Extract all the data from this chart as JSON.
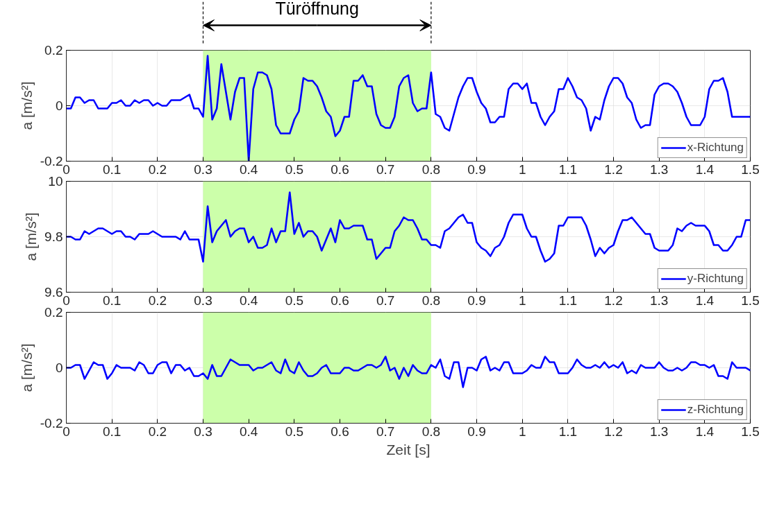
{
  "chart_data": [
    {
      "type": "line",
      "ylabel": "a [m/s²]",
      "xlim": [
        0,
        1.5
      ],
      "xticks": [
        0,
        0.1,
        0.2,
        0.3,
        0.4,
        0.5,
        0.6,
        0.7,
        0.8,
        0.9,
        1,
        1.1,
        1.2,
        1.3,
        1.4,
        1.5
      ],
      "ylim": [
        -0.2,
        0.2
      ],
      "yticks": [
        -0.2,
        0,
        0.2
      ],
      "grid": true,
      "legend": "bottom right",
      "line_style": "solid",
      "bands": [
        {
          "axis": "x",
          "from": 0.3,
          "to": 0.8,
          "label": "Türöffnung",
          "color": "#ccffaa"
        }
      ],
      "x": [
        0,
        0.01,
        0.02,
        0.03,
        0.04,
        0.05,
        0.06,
        0.07,
        0.08,
        0.09,
        0.1,
        0.11,
        0.12,
        0.13,
        0.14,
        0.15,
        0.16,
        0.17,
        0.18,
        0.19,
        0.2,
        0.21,
        0.22,
        0.23,
        0.24,
        0.25,
        0.26,
        0.27,
        0.28,
        0.29,
        0.3,
        0.31,
        0.32,
        0.33,
        0.34,
        0.35,
        0.36,
        0.37,
        0.38,
        0.39,
        0.4,
        0.41,
        0.42,
        0.43,
        0.44,
        0.45,
        0.46,
        0.47,
        0.48,
        0.49,
        0.5,
        0.51,
        0.52,
        0.53,
        0.54,
        0.55,
        0.56,
        0.57,
        0.58,
        0.59,
        0.6,
        0.61,
        0.62,
        0.63,
        0.64,
        0.65,
        0.66,
        0.67,
        0.68,
        0.69,
        0.7,
        0.71,
        0.72,
        0.73,
        0.74,
        0.75,
        0.76,
        0.77,
        0.78,
        0.79,
        0.8,
        0.81,
        0.82,
        0.83,
        0.84,
        0.85,
        0.86,
        0.87,
        0.88,
        0.89,
        0.9,
        0.91,
        0.92,
        0.93,
        0.94,
        0.95,
        0.96,
        0.97,
        0.98,
        0.99,
        1,
        1.01,
        1.02,
        1.03,
        1.04,
        1.05,
        1.06,
        1.07,
        1.08,
        1.09,
        1.1,
        1.11,
        1.12,
        1.13,
        1.14,
        1.15,
        1.16,
        1.17,
        1.18,
        1.19,
        1.2,
        1.21,
        1.22,
        1.23,
        1.24,
        1.25,
        1.26,
        1.27,
        1.28,
        1.29,
        1.3,
        1.31,
        1.32,
        1.33,
        1.34,
        1.35,
        1.36,
        1.37,
        1.38,
        1.39,
        1.4,
        1.41,
        1.42,
        1.43,
        1.44,
        1.45,
        1.46,
        1.47,
        1.48,
        1.49,
        1.5
      ],
      "series": [
        {
          "name": "x-Richtung",
          "color": "#0000ff",
          "values": [
            -0.01,
            -0.01,
            0.03,
            0.03,
            0.01,
            0.02,
            0.02,
            -0.01,
            -0.01,
            -0.01,
            0.01,
            0.01,
            0.02,
            0,
            0,
            0.02,
            0.01,
            0.02,
            0.02,
            0,
            0.01,
            0,
            0,
            0.02,
            0.02,
            0.02,
            0.03,
            0.04,
            -0.01,
            -0.01,
            -0.04,
            0.18,
            -0.05,
            -0.01,
            0.15,
            0.05,
            -0.05,
            0.05,
            0.1,
            0.1,
            -0.2,
            0.06,
            0.12,
            0.12,
            0.11,
            0.06,
            -0.07,
            -0.1,
            -0.1,
            -0.1,
            -0.05,
            -0.02,
            0.1,
            0.09,
            0.09,
            0.07,
            0.03,
            -0.02,
            -0.04,
            -0.11,
            -0.09,
            -0.04,
            -0.04,
            0.09,
            0.09,
            0.11,
            0.07,
            0.07,
            -0.03,
            -0.07,
            -0.08,
            -0.08,
            -0.04,
            0.07,
            0.1,
            0.11,
            0.01,
            -0.02,
            -0.01,
            -0.01,
            0.12,
            -0.03,
            -0.04,
            -0.08,
            -0.09,
            -0.03,
            0.03,
            0.07,
            0.1,
            0.1,
            0.05,
            0.01,
            -0.01,
            -0.06,
            -0.06,
            -0.04,
            -0.04,
            0.06,
            0.08,
            0.08,
            0.06,
            0.08,
            0.01,
            0.01,
            -0.04,
            -0.07,
            -0.04,
            -0.02,
            0.06,
            0.06,
            0.1,
            0.07,
            0.03,
            0.02,
            -0.01,
            -0.09,
            -0.04,
            -0.05,
            0.02,
            0.07,
            0.1,
            0.1,
            0.08,
            0.03,
            0.01,
            -0.05,
            -0.08,
            -0.07,
            -0.07,
            0.04,
            0.07,
            0.08,
            0.08,
            0.07,
            0.05,
            0.01,
            -0.04,
            -0.07,
            -0.07,
            -0.07,
            -0.04,
            0.06,
            0.09,
            0.09,
            0.1,
            0.05,
            -0.04,
            -0.04,
            -0.04,
            -0.04,
            -0.04
          ]
        }
      ]
    },
    {
      "type": "line",
      "ylabel": "a [m/s²]",
      "xlim": [
        0,
        1.5
      ],
      "xticks": [
        0,
        0.1,
        0.2,
        0.3,
        0.4,
        0.5,
        0.6,
        0.7,
        0.8,
        0.9,
        1,
        1.1,
        1.2,
        1.3,
        1.4,
        1.5
      ],
      "ylim": [
        9.6,
        10
      ],
      "yticks": [
        9.6,
        9.8,
        10
      ],
      "grid": true,
      "legend": "bottom right",
      "line_style": "solid",
      "bands": [
        {
          "axis": "x",
          "from": 0.3,
          "to": 0.8,
          "color": "#ccffaa"
        }
      ],
      "x": [
        0,
        0.01,
        0.02,
        0.03,
        0.04,
        0.05,
        0.06,
        0.07,
        0.08,
        0.09,
        0.1,
        0.11,
        0.12,
        0.13,
        0.14,
        0.15,
        0.16,
        0.17,
        0.18,
        0.19,
        0.2,
        0.21,
        0.22,
        0.23,
        0.24,
        0.25,
        0.26,
        0.27,
        0.28,
        0.29,
        0.3,
        0.31,
        0.32,
        0.33,
        0.34,
        0.35,
        0.36,
        0.37,
        0.38,
        0.39,
        0.4,
        0.41,
        0.42,
        0.43,
        0.44,
        0.45,
        0.46,
        0.47,
        0.48,
        0.49,
        0.5,
        0.51,
        0.52,
        0.53,
        0.54,
        0.55,
        0.56,
        0.57,
        0.58,
        0.59,
        0.6,
        0.61,
        0.62,
        0.63,
        0.64,
        0.65,
        0.66,
        0.67,
        0.68,
        0.69,
        0.7,
        0.71,
        0.72,
        0.73,
        0.74,
        0.75,
        0.76,
        0.77,
        0.78,
        0.79,
        0.8,
        0.81,
        0.82,
        0.83,
        0.84,
        0.85,
        0.86,
        0.87,
        0.88,
        0.89,
        0.9,
        0.91,
        0.92,
        0.93,
        0.94,
        0.95,
        0.96,
        0.97,
        0.98,
        0.99,
        1,
        1.01,
        1.02,
        1.03,
        1.04,
        1.05,
        1.06,
        1.07,
        1.08,
        1.09,
        1.1,
        1.11,
        1.12,
        1.13,
        1.14,
        1.15,
        1.16,
        1.17,
        1.18,
        1.19,
        1.2,
        1.21,
        1.22,
        1.23,
        1.24,
        1.25,
        1.26,
        1.27,
        1.28,
        1.29,
        1.3,
        1.31,
        1.32,
        1.33,
        1.34,
        1.35,
        1.36,
        1.37,
        1.38,
        1.39,
        1.4,
        1.41,
        1.42,
        1.43,
        1.44,
        1.45,
        1.46,
        1.47,
        1.48,
        1.49,
        1.5
      ],
      "series": [
        {
          "name": "y-Richtung",
          "color": "#0000ff",
          "values": [
            9.8,
            9.8,
            9.79,
            9.79,
            9.82,
            9.81,
            9.82,
            9.83,
            9.83,
            9.82,
            9.81,
            9.82,
            9.82,
            9.8,
            9.8,
            9.79,
            9.81,
            9.81,
            9.81,
            9.82,
            9.81,
            9.8,
            9.8,
            9.8,
            9.8,
            9.79,
            9.82,
            9.79,
            9.79,
            9.79,
            9.71,
            9.91,
            9.78,
            9.82,
            9.84,
            9.86,
            9.8,
            9.82,
            9.83,
            9.83,
            9.78,
            9.8,
            9.76,
            9.76,
            9.77,
            9.83,
            9.78,
            9.82,
            9.82,
            9.96,
            9.81,
            9.85,
            9.8,
            9.82,
            9.82,
            9.8,
            9.75,
            9.79,
            9.83,
            9.78,
            9.86,
            9.83,
            9.83,
            9.84,
            9.84,
            9.84,
            9.79,
            9.79,
            9.72,
            9.74,
            9.76,
            9.76,
            9.82,
            9.84,
            9.87,
            9.86,
            9.86,
            9.83,
            9.79,
            9.79,
            9.77,
            9.77,
            9.76,
            9.82,
            9.83,
            9.85,
            9.87,
            9.88,
            9.85,
            9.85,
            9.78,
            9.76,
            9.75,
            9.73,
            9.76,
            9.77,
            9.8,
            9.85,
            9.88,
            9.88,
            9.88,
            9.83,
            9.8,
            9.8,
            9.75,
            9.71,
            9.72,
            9.74,
            9.84,
            9.84,
            9.87,
            9.87,
            9.87,
            9.87,
            9.84,
            9.79,
            9.73,
            9.76,
            9.74,
            9.76,
            9.77,
            9.82,
            9.86,
            9.86,
            9.87,
            9.85,
            9.83,
            9.81,
            9.81,
            9.76,
            9.75,
            9.75,
            9.75,
            9.77,
            9.83,
            9.82,
            9.84,
            9.85,
            9.84,
            9.84,
            9.84,
            9.82,
            9.77,
            9.77,
            9.75,
            9.75,
            9.77,
            9.8,
            9.8,
            9.86,
            9.86
          ]
        }
      ]
    },
    {
      "type": "line",
      "xlabel": "Zeit [s]",
      "ylabel": "a [m/s²]",
      "xlim": [
        0,
        1.5
      ],
      "xticks": [
        0,
        0.1,
        0.2,
        0.3,
        0.4,
        0.5,
        0.6,
        0.7,
        0.8,
        0.9,
        1,
        1.1,
        1.2,
        1.3,
        1.4,
        1.5
      ],
      "ylim": [
        -0.2,
        0.2
      ],
      "yticks": [
        -0.2,
        0,
        0.2
      ],
      "grid": true,
      "legend": "bottom right",
      "line_style": "solid",
      "bands": [
        {
          "axis": "x",
          "from": 0.3,
          "to": 0.8,
          "color": "#ccffaa"
        }
      ],
      "x": [
        0,
        0.01,
        0.02,
        0.03,
        0.04,
        0.05,
        0.06,
        0.07,
        0.08,
        0.09,
        0.1,
        0.11,
        0.12,
        0.13,
        0.14,
        0.15,
        0.16,
        0.17,
        0.18,
        0.19,
        0.2,
        0.21,
        0.22,
        0.23,
        0.24,
        0.25,
        0.26,
        0.27,
        0.28,
        0.29,
        0.3,
        0.31,
        0.32,
        0.33,
        0.34,
        0.35,
        0.36,
        0.37,
        0.38,
        0.39,
        0.4,
        0.41,
        0.42,
        0.43,
        0.44,
        0.45,
        0.46,
        0.47,
        0.48,
        0.49,
        0.5,
        0.51,
        0.52,
        0.53,
        0.54,
        0.55,
        0.56,
        0.57,
        0.58,
        0.59,
        0.6,
        0.61,
        0.62,
        0.63,
        0.64,
        0.65,
        0.66,
        0.67,
        0.68,
        0.69,
        0.7,
        0.71,
        0.72,
        0.73,
        0.74,
        0.75,
        0.76,
        0.77,
        0.78,
        0.79,
        0.8,
        0.81,
        0.82,
        0.83,
        0.84,
        0.85,
        0.86,
        0.87,
        0.88,
        0.89,
        0.9,
        0.91,
        0.92,
        0.93,
        0.94,
        0.95,
        0.96,
        0.97,
        0.98,
        0.99,
        1,
        1.01,
        1.02,
        1.03,
        1.04,
        1.05,
        1.06,
        1.07,
        1.08,
        1.09,
        1.1,
        1.11,
        1.12,
        1.13,
        1.14,
        1.15,
        1.16,
        1.17,
        1.18,
        1.19,
        1.2,
        1.21,
        1.22,
        1.23,
        1.24,
        1.25,
        1.26,
        1.27,
        1.28,
        1.29,
        1.3,
        1.31,
        1.32,
        1.33,
        1.34,
        1.35,
        1.36,
        1.37,
        1.38,
        1.39,
        1.4,
        1.41,
        1.42,
        1.43,
        1.44,
        1.45,
        1.46,
        1.47,
        1.48,
        1.49,
        1.5
      ],
      "series": [
        {
          "name": "z-Richtung",
          "color": "#0000ff",
          "values": [
            0,
            0,
            0.01,
            0.01,
            -0.04,
            -0.01,
            0.02,
            0.01,
            0.01,
            -0.04,
            -0.02,
            0.01,
            0,
            0,
            0,
            -0.01,
            0.02,
            0.01,
            -0.02,
            -0.02,
            0.01,
            0.02,
            0.02,
            -0.02,
            0.01,
            0.01,
            -0.01,
            0,
            -0.03,
            -0.03,
            -0.02,
            -0.04,
            0.01,
            -0.03,
            -0.03,
            0,
            0.03,
            0.02,
            0.01,
            0.01,
            0.01,
            -0.01,
            0,
            0,
            0.01,
            0.02,
            -0.01,
            -0.02,
            0.03,
            -0.01,
            -0.02,
            0.02,
            -0.01,
            -0.03,
            -0.03,
            -0.02,
            0,
            0.01,
            -0.02,
            -0.02,
            -0.02,
            0,
            0,
            -0.01,
            -0.01,
            0,
            0.01,
            0.01,
            0,
            0.01,
            0.04,
            -0.01,
            0,
            -0.04,
            0,
            -0.03,
            0.01,
            -0.01,
            -0.02,
            -0.02,
            0.01,
            0,
            0.03,
            -0.03,
            -0.04,
            0.02,
            0.02,
            -0.07,
            0,
            0,
            -0.01,
            0.03,
            0.04,
            -0.01,
            0,
            -0.01,
            0.02,
            0.02,
            -0.02,
            -0.02,
            -0.02,
            -0.01,
            0.01,
            0,
            0,
            0.04,
            0.02,
            0.02,
            -0.02,
            -0.02,
            -0.02,
            0,
            0.03,
            0.01,
            0,
            0,
            0.01,
            0,
            0.02,
            0,
            0.01,
            0,
            0.02,
            -0.02,
            -0.01,
            -0.02,
            0.01,
            0,
            0,
            0,
            0.02,
            0,
            -0.01,
            -0.01,
            0,
            -0.01,
            0,
            0.02,
            0.02,
            0.01,
            0.01,
            0,
            0.01,
            -0.03,
            -0.03,
            -0.04,
            0.02,
            0,
            0,
            0,
            -0.01
          ]
        }
      ]
    }
  ]
}
